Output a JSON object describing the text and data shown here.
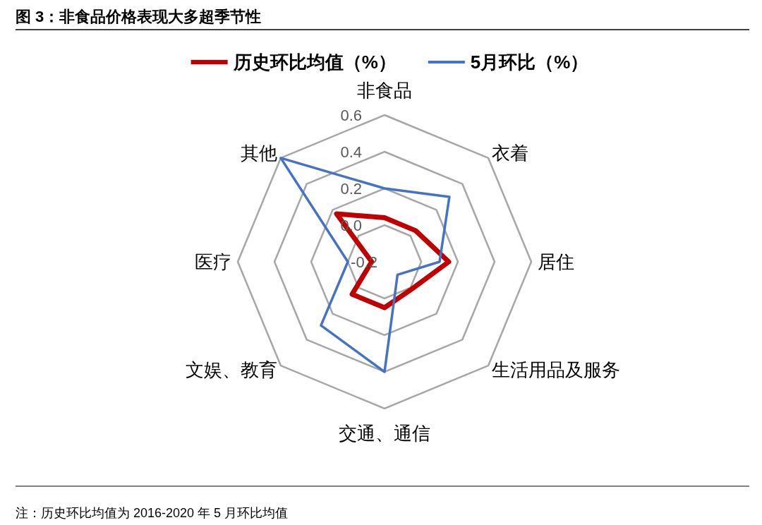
{
  "chart_data": {
    "type": "radar",
    "title": "图 3：非食品价格表现大多超季节性",
    "categories": [
      "非食品",
      "衣着",
      "居住",
      "生活用品及服务",
      "交通、通信",
      "文娱、教育",
      "医疗",
      "其他"
    ],
    "series": [
      {
        "name": "历史环比均值（%）",
        "color": "#c00000",
        "values": [
          0.04,
          0.04,
          0.15,
          0.01,
          0.05,
          0.05,
          -0.13,
          0.17
        ]
      },
      {
        "name": "5月环比（%）",
        "color": "#4472c4",
        "values": [
          0.2,
          0.3,
          0.1,
          -0.1,
          0.4,
          0.29,
          0.0,
          0.6
        ]
      }
    ],
    "ylim": [
      -0.2,
      0.6
    ],
    "yticks": [
      -0.2,
      {
        "value": 0,
        "label": "0.0"
      },
      0.2,
      0.4,
      0.6
    ],
    "grid": true,
    "legend": "top",
    "annotations": [
      "注：历史环比均值为 2016-2020 年 5 月环比均值"
    ]
  }
}
